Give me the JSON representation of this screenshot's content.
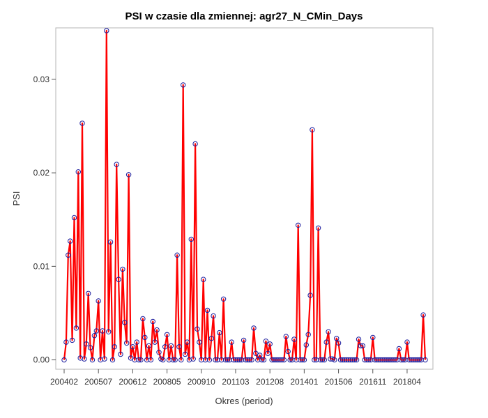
{
  "chart_data": {
    "type": "line",
    "title": "PSI w czasie dla zmiennej: agr27_N_CMin_Days",
    "xlabel": "Okres (period)",
    "ylabel": "PSI",
    "x_ticks": [
      "200402",
      "200507",
      "200612",
      "200805",
      "200910",
      "201103",
      "201208",
      "201401",
      "201506",
      "201611",
      "201804"
    ],
    "y_ticks": [
      "0.00",
      "0.01",
      "0.02",
      "0.03"
    ],
    "ylim": [
      -0.001,
      0.0355
    ],
    "grid": false,
    "legend": "none",
    "line_color": "#ff0000",
    "marker_color": "#1a1a9c",
    "series": [
      {
        "values": [
          0.0,
          0.0019,
          0.0112,
          0.0127,
          0.0021,
          0.0152,
          0.0034,
          0.0201,
          0.0002,
          0.0253,
          0.0001,
          0.0017,
          0.0071,
          0.0013,
          0.0,
          0.0026,
          0.0031,
          0.0063,
          0.0,
          0.0031,
          0.0001,
          0.0352,
          0.003,
          0.0126,
          0.0,
          0.0014,
          0.0209,
          0.0086,
          0.0006,
          0.0097,
          0.004,
          0.0018,
          0.0198,
          0.0002,
          0.0014,
          0.0,
          0.0019,
          0.0,
          0.0,
          0.0044,
          0.0024,
          0.0,
          0.0015,
          0.0,
          0.0041,
          0.0019,
          0.0032,
          0.0008,
          0.0001,
          0.0,
          0.0014,
          0.0027,
          0.0,
          0.0015,
          0.0,
          0.0,
          0.0112,
          0.0014,
          0.0,
          0.0294,
          0.0006,
          0.0019,
          0.0,
          0.0129,
          0.0001,
          0.0231,
          0.0033,
          0.0019,
          0.0,
          0.0086,
          0.0,
          0.0053,
          0.0,
          0.0023,
          0.0047,
          0.0,
          0.0,
          0.0029,
          0.0,
          0.0065,
          0.0,
          0.0,
          0.0,
          0.0019,
          0.0,
          0.0,
          0.0,
          0.0,
          0.0,
          0.0021,
          0.0,
          0.0,
          0.0,
          0.0,
          0.0034,
          0.0007,
          0.0,
          0.0005,
          0.0,
          0.0,
          0.002,
          0.0007,
          0.0017,
          0.0,
          0.0,
          0.0,
          0.0,
          0.0,
          0.0,
          0.0,
          0.0025,
          0.0009,
          0.0,
          0.0,
          0.0022,
          0.0,
          0.0144,
          0.0,
          0.0,
          0.0,
          0.0016,
          0.0027,
          0.0069,
          0.0246,
          0.0,
          0.0,
          0.0141,
          0.0,
          0.0,
          0.0,
          0.0019,
          0.003,
          0.0001,
          0.0001,
          0.0,
          0.0023,
          0.0018,
          0.0,
          0.0,
          0.0,
          0.0,
          0.0,
          0.0,
          0.0,
          0.0,
          0.0,
          0.0022,
          0.0015,
          0.0015,
          0.0,
          0.0,
          0.0,
          0.0,
          0.0024,
          0.0,
          0.0,
          0.0,
          0.0,
          0.0,
          0.0,
          0.0,
          0.0,
          0.0,
          0.0,
          0.0,
          0.0,
          0.0012,
          0.0,
          0.0,
          0.0,
          0.0019,
          0.0,
          0.0,
          0.0,
          0.0,
          0.0,
          0.0,
          0.0,
          0.0048,
          0.0
        ]
      }
    ]
  }
}
